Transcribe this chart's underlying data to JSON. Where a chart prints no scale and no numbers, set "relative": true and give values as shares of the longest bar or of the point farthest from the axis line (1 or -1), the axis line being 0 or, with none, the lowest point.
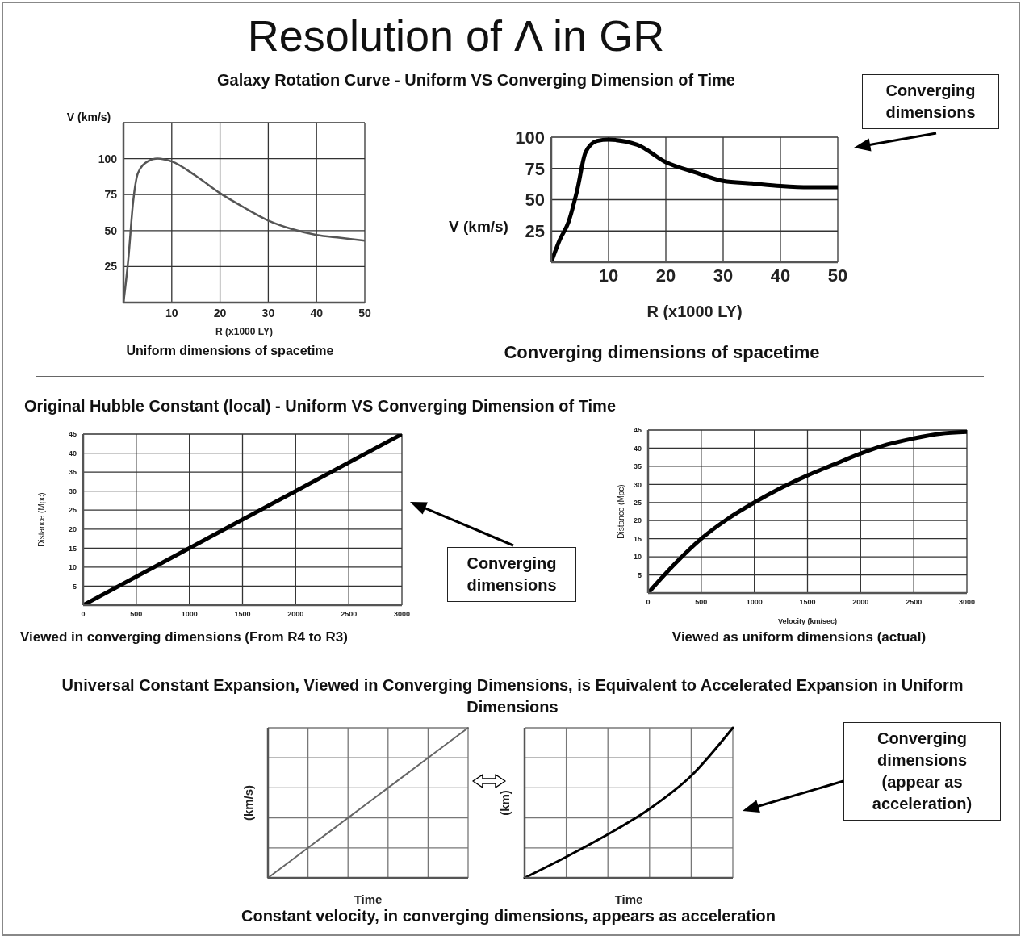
{
  "chart_data": [
    {
      "type": "line",
      "title": "Resolution of Λ in GR",
      "subtitle": "Galaxy Rotation Curve - Uniform VS Converging Dimension of Time",
      "xlabel": "R (x1000 LY)",
      "ylabel": "V (km/s)",
      "annotations": [
        "Uniform dimensions of spacetime"
      ],
      "x": [
        0,
        1,
        2,
        3,
        5,
        7,
        10,
        15,
        20,
        25,
        30,
        35,
        40,
        45,
        50
      ],
      "values": [
        0,
        30,
        70,
        90,
        98,
        100,
        98,
        88,
        76,
        66,
        57,
        51,
        47,
        45,
        43
      ],
      "color": "#555555",
      "xlim": [
        0,
        50
      ],
      "ylim": [
        0,
        125
      ],
      "xticks": [
        10,
        20,
        30,
        40,
        50
      ],
      "yticks": [
        25,
        50,
        75,
        100
      ],
      "grid": true
    },
    {
      "type": "line",
      "xlabel": "R (x1000 LY)",
      "ylabel": "V (km/s)",
      "annotations": [
        "Converging dimensions",
        "Converging dimensions of spacetime"
      ],
      "x": [
        0,
        1.5,
        3,
        4.5,
        6,
        8,
        10,
        15,
        20,
        25,
        30,
        35,
        40,
        45,
        50
      ],
      "values": [
        0,
        18,
        32,
        57,
        88,
        97,
        98,
        94,
        80,
        72,
        65,
        63,
        61,
        60,
        60
      ],
      "color": "#000000",
      "xlim": [
        0,
        50
      ],
      "ylim": [
        0,
        100
      ],
      "xticks": [
        10,
        20,
        30,
        40,
        50
      ],
      "yticks": [
        25,
        50,
        75,
        100
      ],
      "grid": true
    },
    {
      "type": "line",
      "subtitle": "Original Hubble Constant (local) - Uniform VS Converging Dimension of Time",
      "ylabel": "Distance (Mpc)",
      "annotations": [
        "Viewed in converging dimensions (From R4 to R3)",
        "Converging dimensions"
      ],
      "x": [
        0,
        3000
      ],
      "values": [
        0,
        45
      ],
      "color": "#000000",
      "xlim": [
        0,
        3000
      ],
      "ylim": [
        0,
        45
      ],
      "xticks": [
        0,
        500,
        1000,
        1500,
        2000,
        2500,
        3000
      ],
      "yticks": [
        5,
        10,
        15,
        20,
        25,
        30,
        35,
        40,
        45
      ],
      "grid": true
    },
    {
      "type": "line",
      "xlabel": "Velocity (km/sec)",
      "ylabel": "Distance (Mpc)",
      "annotations": [
        "Viewed as uniform dimensions (actual)"
      ],
      "x": [
        0,
        250,
        500,
        750,
        1000,
        1250,
        1500,
        1750,
        2000,
        2250,
        2500,
        2750,
        3000
      ],
      "values": [
        0,
        8,
        15,
        20.5,
        25,
        29,
        32.5,
        35.5,
        38.5,
        41,
        42.7,
        44,
        44.5
      ],
      "color": "#000000",
      "xlim": [
        0,
        3000
      ],
      "ylim": [
        0,
        45
      ],
      "xticks": [
        0,
        500,
        1000,
        1500,
        2000,
        2500,
        3000
      ],
      "yticks": [
        5,
        10,
        15,
        20,
        25,
        30,
        35,
        40,
        45
      ],
      "grid": true
    },
    {
      "type": "line",
      "subtitle": "Universal Constant Expansion, Viewed in Converging Dimensions, is Equivalent to Accelerated Expansion in Uniform Dimensions",
      "xlabel": "Time",
      "ylabel": "(km/s)",
      "annotations": [
        "Constant velocity, in converging dimensions, appears as acceleration"
      ],
      "categories": [
        null,
        null,
        null,
        null,
        null,
        null
      ],
      "values": [
        0,
        0.2,
        0.4,
        0.6,
        0.8,
        1
      ],
      "color": "#666666",
      "relative": true,
      "grid": true
    },
    {
      "type": "line",
      "xlabel": "Time",
      "ylabel": "(km)",
      "annotations": [
        "Converging dimensions (appear as acceleration)"
      ],
      "categories": [
        null,
        null,
        null,
        null,
        null,
        null
      ],
      "values": [
        0,
        0.14,
        0.29,
        0.46,
        0.68,
        1
      ],
      "color": "#000000",
      "relative": true,
      "grid": true
    }
  ]
}
